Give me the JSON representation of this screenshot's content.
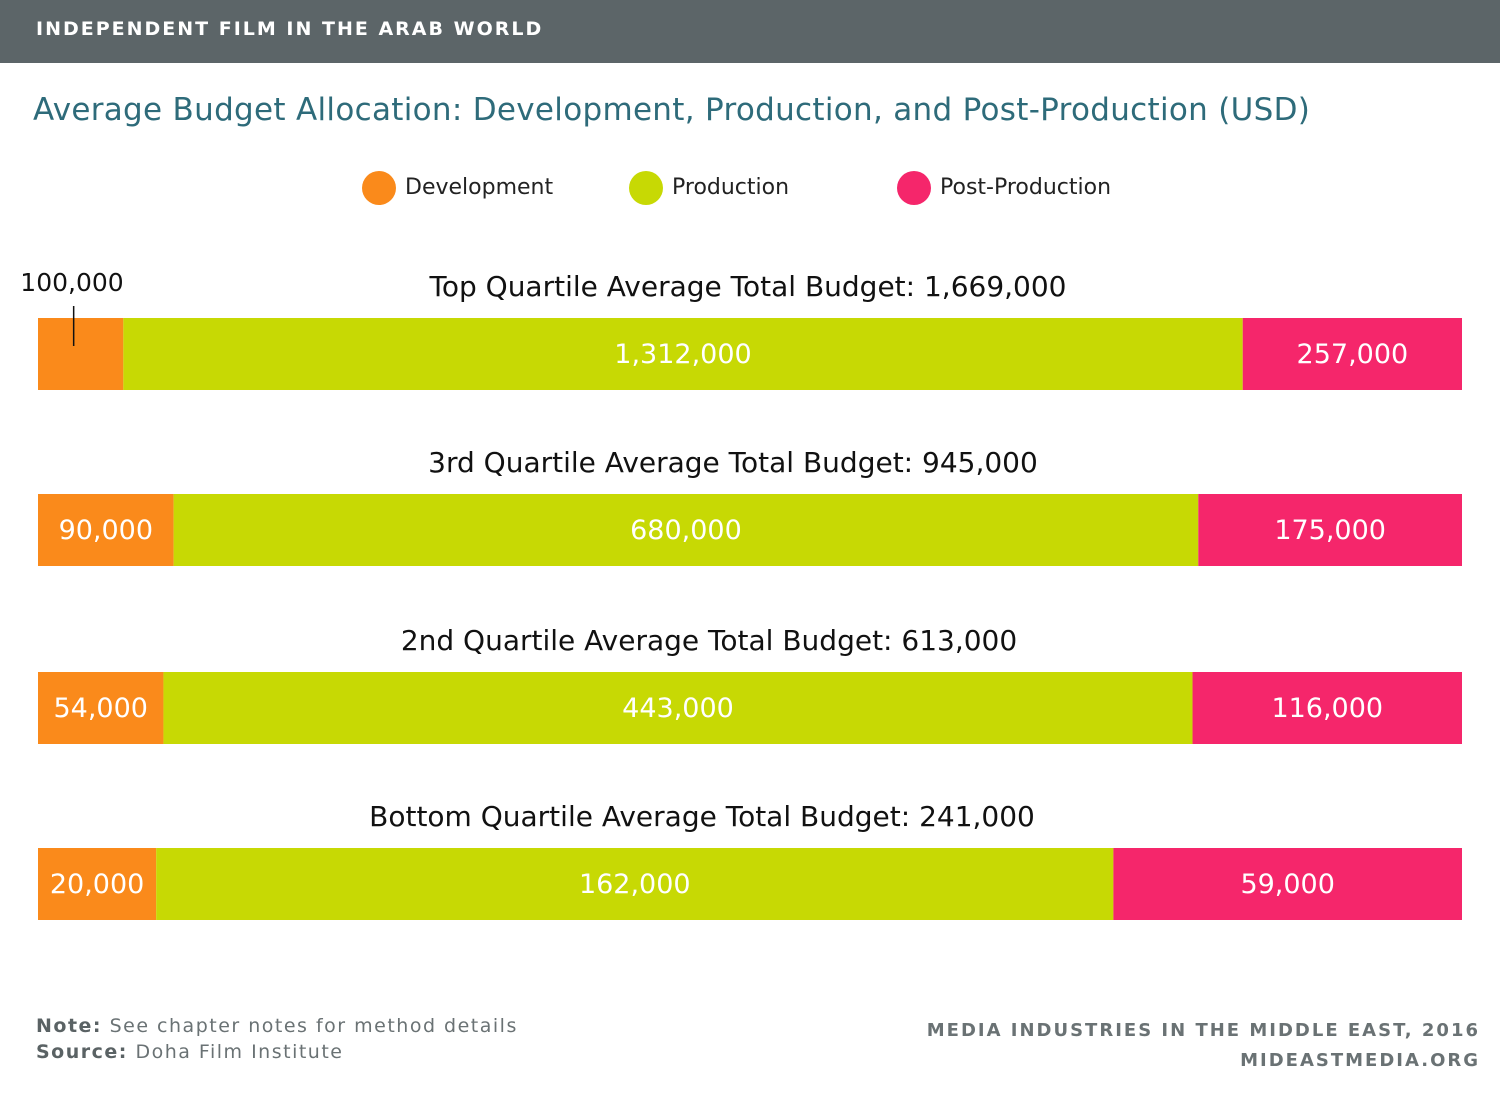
{
  "header": {
    "title": "INDEPENDENT FILM IN THE ARAB WORLD"
  },
  "colors": {
    "development": "#fa8a1b",
    "production": "#c7d904",
    "post_production": "#f5266b",
    "header_bg": "#5c6568",
    "title": "#2e6b7a"
  },
  "legend": [
    {
      "label": "Development",
      "color": "#fa8a1b"
    },
    {
      "label": "Production",
      "color": "#c7d904"
    },
    {
      "label": "Post-Production",
      "color": "#f5266b"
    }
  ],
  "chart_data": {
    "type": "bar",
    "stacked": true,
    "orientation": "horizontal",
    "normalized": true,
    "title": "Average Budget Allocation: Development, Production, and Post-Production (USD)",
    "series_names": [
      "Development",
      "Production",
      "Post-Production"
    ],
    "groups": [
      {
        "label": "Top Quartile Average Total Budget: 1,669,000",
        "total": 1669000,
        "values": [
          100000,
          1312000,
          257000
        ],
        "value_labels": [
          "100,000",
          "1,312,000",
          "257,000"
        ]
      },
      {
        "label": "3rd Quartile Average Total Budget: 945,000",
        "total": 945000,
        "values": [
          90000,
          680000,
          175000
        ],
        "value_labels": [
          "90,000",
          "680,000",
          "175,000"
        ]
      },
      {
        "label": "2nd Quartile Average Total Budget: 613,000",
        "total": 613000,
        "values": [
          54000,
          443000,
          116000
        ],
        "value_labels": [
          "54,000",
          "443,000",
          "116,000"
        ]
      },
      {
        "label": "Bottom Quartile Average Total Budget: 241,000",
        "total": 241000,
        "values": [
          20000,
          162000,
          59000
        ],
        "value_labels": [
          "20,000",
          "162,000",
          "59,000"
        ]
      }
    ]
  },
  "footer": {
    "note_label": "Note:",
    "note_text": "See chapter notes for method details",
    "source_label": "Source:",
    "source_text": "Doha Film Institute",
    "credit_line1": "MEDIA INDUSTRIES IN THE MIDDLE EAST, 2016",
    "credit_line2": "MIDEASTMEDIA.ORG"
  }
}
